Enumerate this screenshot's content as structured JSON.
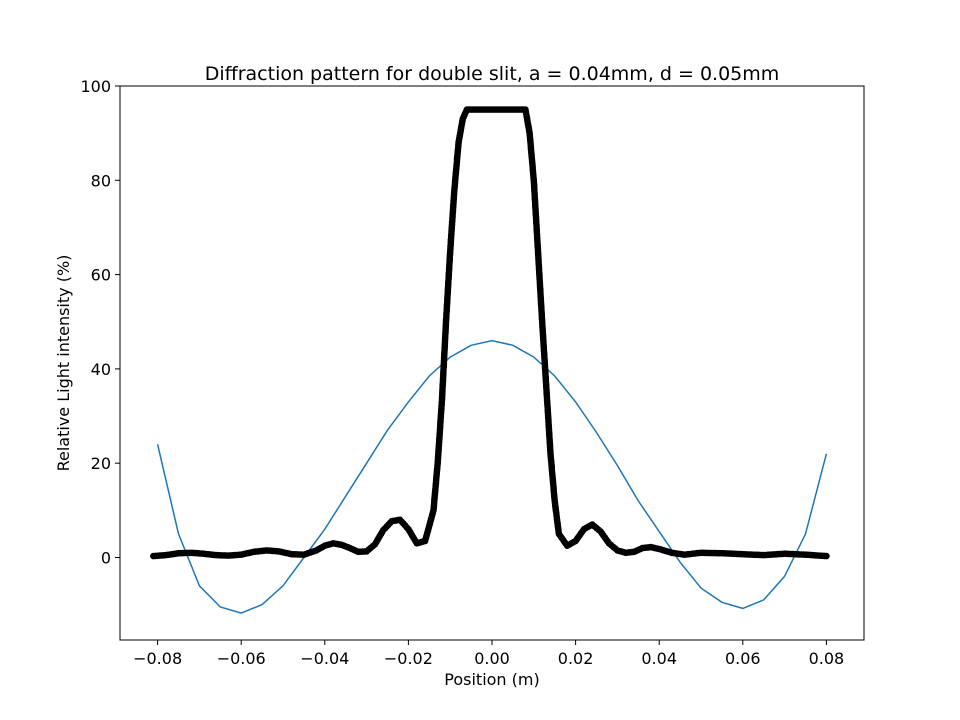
{
  "chart_data": {
    "type": "scatter",
    "title": "Diffraction pattern for double slit, a = 0.04mm, d = 0.05mm",
    "xlabel": "Position (m)",
    "ylabel": "Relative Light intensity (%)",
    "xlim": [
      -0.089,
      0.089
    ],
    "ylim": [
      -17.5,
      100
    ],
    "xticks": [
      -0.08,
      -0.06,
      -0.04,
      -0.02,
      0.0,
      0.02,
      0.04,
      0.06,
      0.08
    ],
    "xtick_labels": [
      "−0.08",
      "−0.06",
      "−0.04",
      "−0.02",
      "0.00",
      "0.02",
      "0.04",
      "0.06",
      "0.08"
    ],
    "yticks": [
      0,
      20,
      40,
      60,
      80,
      100
    ],
    "ytick_labels": [
      "0",
      "20",
      "40",
      "60",
      "80",
      "100"
    ],
    "grid": false,
    "colors": {
      "measured": "#000000",
      "fit": "#1f77b4"
    },
    "series": [
      {
        "kind": "scatter",
        "color": "#000000",
        "x": [
          -0.081,
          -0.078,
          -0.075,
          -0.072,
          -0.069,
          -0.066,
          -0.063,
          -0.06,
          -0.057,
          -0.054,
          -0.051,
          -0.048,
          -0.045,
          -0.042,
          -0.04,
          -0.038,
          -0.036,
          -0.034,
          -0.032,
          -0.03,
          -0.028,
          -0.026,
          -0.024,
          -0.022,
          -0.02,
          -0.018,
          -0.016,
          -0.014,
          -0.013,
          -0.012,
          -0.011,
          -0.01,
          -0.009,
          -0.008,
          -0.007,
          -0.006,
          -0.005,
          -0.004,
          0.0,
          0.004,
          0.008,
          0.009,
          0.01,
          0.011,
          0.012,
          0.013,
          0.014,
          0.015,
          0.016,
          0.018,
          0.02,
          0.022,
          0.024,
          0.026,
          0.028,
          0.03,
          0.032,
          0.034,
          0.036,
          0.038,
          0.04,
          0.043,
          0.046,
          0.05,
          0.055,
          0.06,
          0.065,
          0.07,
          0.075,
          0.08
        ],
        "y": [
          0.3,
          0.5,
          0.9,
          1.0,
          0.8,
          0.5,
          0.4,
          0.6,
          1.2,
          1.5,
          1.3,
          0.7,
          0.6,
          1.5,
          2.5,
          3.0,
          2.7,
          2.0,
          1.2,
          1.3,
          2.8,
          5.8,
          7.7,
          8.0,
          6.0,
          3.0,
          3.5,
          10.0,
          20.0,
          33.0,
          50.0,
          65.0,
          78.0,
          88.0,
          93.0,
          95.0,
          95.0,
          95.0,
          95.0,
          95.0,
          95.0,
          90.0,
          80.0,
          65.0,
          50.0,
          36.0,
          22.0,
          12.0,
          5.0,
          2.5,
          3.5,
          6.0,
          7.0,
          5.5,
          3.0,
          1.5,
          1.0,
          1.2,
          2.0,
          2.2,
          1.8,
          1.0,
          0.6,
          1.0,
          0.9,
          0.7,
          0.5,
          0.8,
          0.6,
          0.3
        ]
      },
      {
        "kind": "line",
        "color": "#1f77b4",
        "x": [
          -0.08,
          -0.075,
          -0.07,
          -0.065,
          -0.06,
          -0.055,
          -0.05,
          -0.045,
          -0.04,
          -0.035,
          -0.03,
          -0.025,
          -0.02,
          -0.015,
          -0.01,
          -0.005,
          0.0,
          0.005,
          0.01,
          0.015,
          0.02,
          0.025,
          0.03,
          0.035,
          0.04,
          0.045,
          0.05,
          0.055,
          0.06,
          0.065,
          0.07,
          0.075,
          0.08
        ],
        "y": [
          24.0,
          5.0,
          -6.0,
          -10.5,
          -11.8,
          -10.0,
          -6.0,
          0.0,
          6.0,
          13.0,
          20.0,
          27.0,
          33.0,
          38.5,
          42.5,
          45.0,
          46.0,
          45.0,
          42.5,
          38.5,
          33.0,
          26.5,
          19.5,
          12.0,
          5.5,
          -1.0,
          -6.5,
          -9.5,
          -10.8,
          -9.0,
          -4.0,
          5.0,
          22.0
        ]
      }
    ]
  }
}
